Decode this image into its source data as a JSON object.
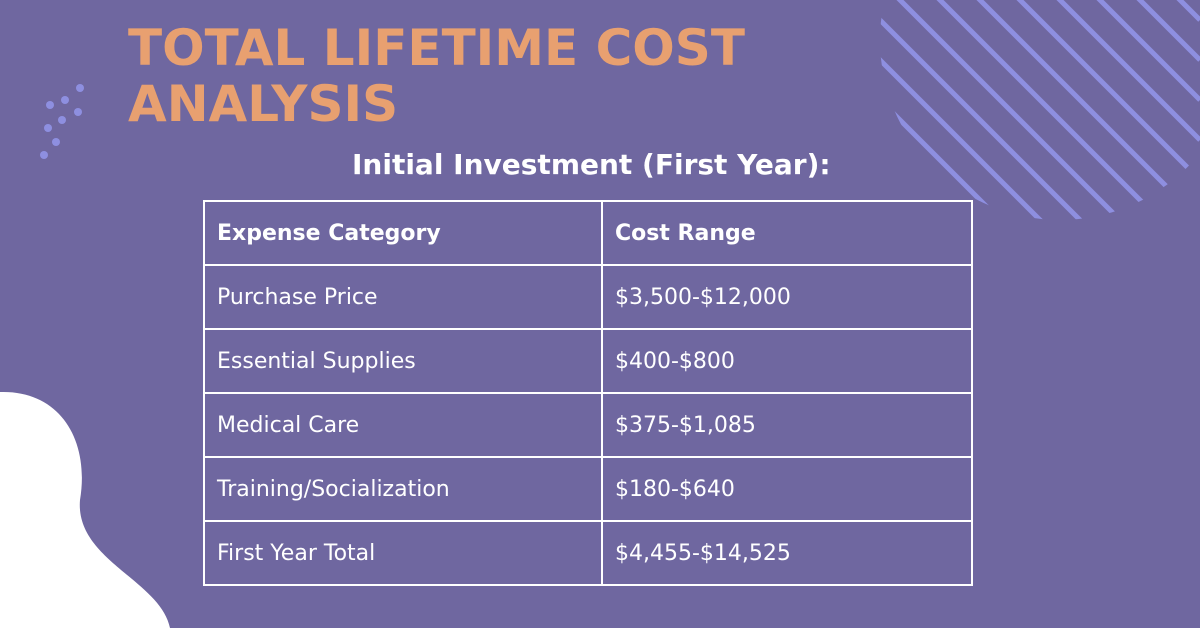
{
  "header": {
    "title": "TOTAL LIFETIME COST ANALYSIS",
    "subtitle": "Initial Investment (First Year):"
  },
  "table": {
    "columns": [
      "Expense Category",
      "Cost Range"
    ],
    "rows": [
      [
        "Purchase Price",
        "$3,500-$12,000"
      ],
      [
        "Essential Supplies",
        "$400-$800"
      ],
      [
        "Medical Care",
        "$375-$1,085"
      ],
      [
        "Training/Socialization",
        "$180-$640"
      ],
      [
        "First Year Total",
        "$4,455-$14,525"
      ]
    ]
  }
}
